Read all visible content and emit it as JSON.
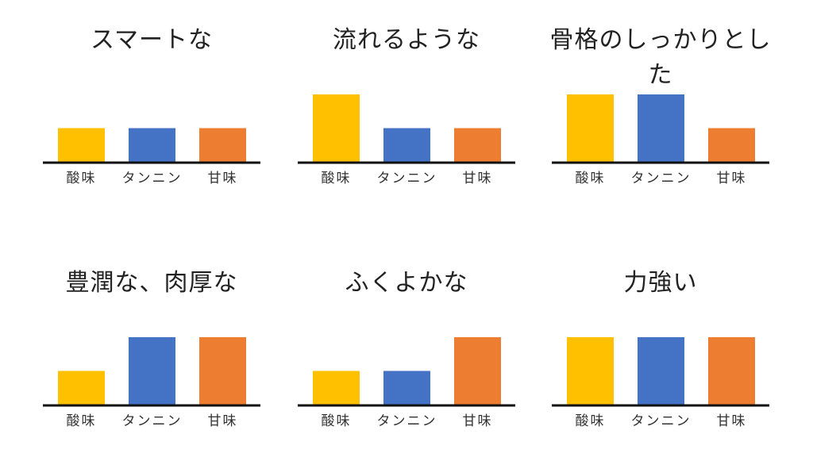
{
  "chart_data": [
    {
      "type": "bar",
      "title": "スマートな",
      "categories": [
        "酸味",
        "タンニン",
        "甘味"
      ],
      "values": [
        1,
        1,
        1
      ],
      "ylim": [
        0,
        2
      ],
      "colors": [
        "#FFC000",
        "#4472C4",
        "#ED7D31"
      ],
      "grid": false
    },
    {
      "type": "bar",
      "title": "流れるような",
      "categories": [
        "酸味",
        "タンニン",
        "甘味"
      ],
      "values": [
        2,
        1,
        1
      ],
      "ylim": [
        0,
        2
      ],
      "colors": [
        "#FFC000",
        "#4472C4",
        "#ED7D31"
      ],
      "grid": false
    },
    {
      "type": "bar",
      "title": "骨格のしっかりとした",
      "categories": [
        "酸味",
        "タンニン",
        "甘味"
      ],
      "values": [
        2,
        2,
        1
      ],
      "ylim": [
        0,
        2
      ],
      "colors": [
        "#FFC000",
        "#4472C4",
        "#ED7D31"
      ],
      "grid": false
    },
    {
      "type": "bar",
      "title": "豊潤な、肉厚な",
      "categories": [
        "酸味",
        "タンニン",
        "甘味"
      ],
      "values": [
        1,
        2,
        2
      ],
      "ylim": [
        0,
        2
      ],
      "colors": [
        "#FFC000",
        "#4472C4",
        "#ED7D31"
      ],
      "grid": false
    },
    {
      "type": "bar",
      "title": "ふくよかな",
      "categories": [
        "酸味",
        "タンニン",
        "甘味"
      ],
      "values": [
        1,
        1,
        2
      ],
      "ylim": [
        0,
        2
      ],
      "colors": [
        "#FFC000",
        "#4472C4",
        "#ED7D31"
      ],
      "grid": false
    },
    {
      "type": "bar",
      "title": "力強い",
      "categories": [
        "酸味",
        "タンニン",
        "甘味"
      ],
      "values": [
        2,
        2,
        2
      ],
      "ylim": [
        0,
        2
      ],
      "colors": [
        "#FFC000",
        "#4472C4",
        "#ED7D31"
      ],
      "grid": false
    }
  ]
}
